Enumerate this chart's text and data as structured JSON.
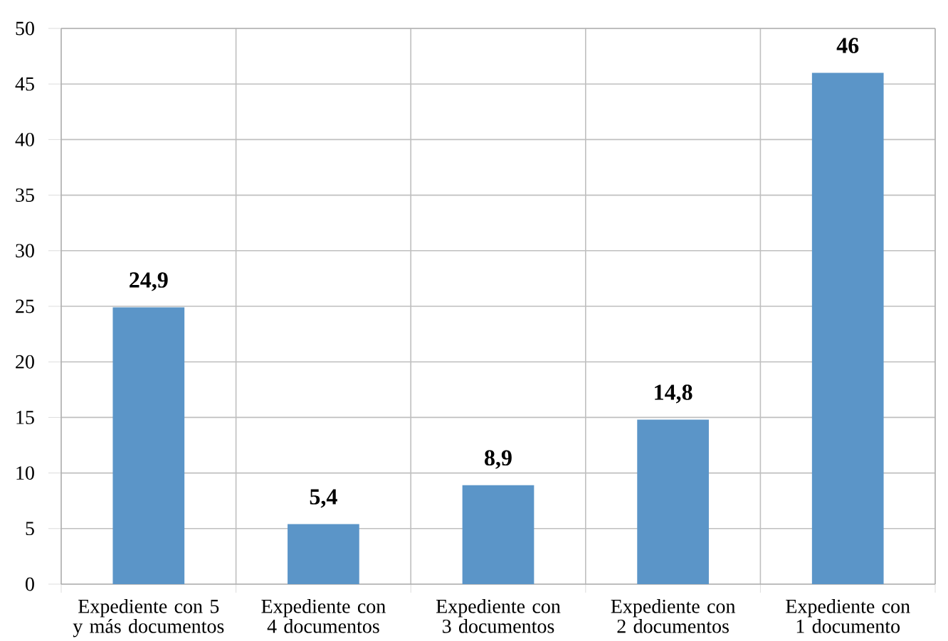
{
  "chart_data": {
    "type": "bar",
    "categories": [
      "Expediente con 5 y más documentos",
      "Expediente con 4 documentos",
      "Expediente con 3 documentos",
      "Expediente con 2 documentos",
      "Expediente con 1 documento"
    ],
    "values": [
      24.9,
      5.4,
      8.9,
      14.8,
      46
    ],
    "value_labels": [
      "24,9",
      "5,4",
      "8,9",
      "14,8",
      "46"
    ],
    "color": "#5b95c8",
    "ylim": [
      0,
      50
    ],
    "yticks": [
      0,
      5,
      10,
      15,
      20,
      25,
      30,
      35,
      40,
      45,
      50
    ],
    "grid": true
  }
}
